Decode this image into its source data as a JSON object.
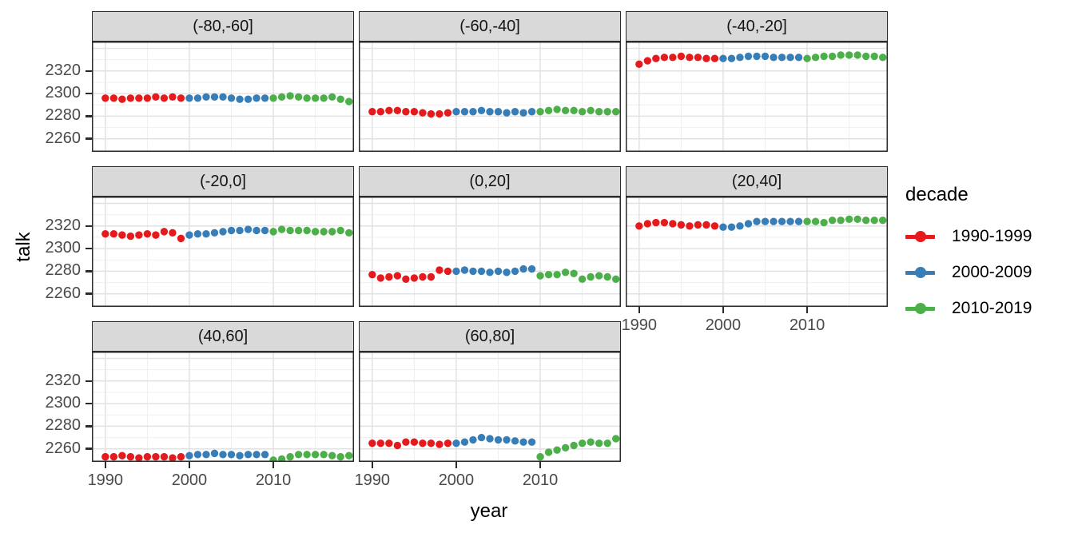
{
  "figure": {
    "ylabel": "talk",
    "xlabel": "year"
  },
  "legend": {
    "title": "decade",
    "entries": [
      {
        "label": "1990-1999",
        "color": "#E41A1C"
      },
      {
        "label": "2000-2009",
        "color": "#377EB8"
      },
      {
        "label": "2010-2019",
        "color": "#4DAF4A"
      }
    ]
  },
  "colors": {
    "red": "#E41A1C",
    "blue": "#377EB8",
    "green": "#4DAF4A",
    "strip_bg": "#D9D9D9",
    "panel_border": "#2b2b2b",
    "grid_major": "#E2E2E2",
    "grid_minor": "#EFEFEF",
    "axis_text": "#4a4a4a"
  },
  "chart_data": {
    "type": "scatter",
    "title": "",
    "xlabel": "year",
    "ylabel": "talk",
    "legend_title": "decade",
    "legend_position": "right",
    "grid": true,
    "x_ticks": [
      1990,
      2000,
      2010
    ],
    "y_ticks": [
      2320,
      2300,
      2280,
      2260
    ],
    "y_major": [
      2260,
      2280,
      2300,
      2320,
      2340
    ],
    "y_minor": [
      2250,
      2270,
      2290,
      2310,
      2330
    ],
    "x_minor": [
      1995,
      2005,
      2015
    ],
    "xlim": [
      1988.4,
      2019.6
    ],
    "ylim": [
      2248.5,
      2346
    ],
    "x_by_series": {
      "1990-1999": [
        1990,
        1991,
        1992,
        1993,
        1994,
        1995,
        1996,
        1997,
        1998,
        1999
      ],
      "2000-2009": [
        2000,
        2001,
        2002,
        2003,
        2004,
        2005,
        2006,
        2007,
        2008,
        2009
      ],
      "2010-2019": [
        2010,
        2011,
        2012,
        2013,
        2014,
        2015,
        2016,
        2017,
        2018,
        2019
      ]
    },
    "facets": [
      {
        "label": "(-80,-60]",
        "series": [
          {
            "name": "1990-1999",
            "color": "#E41A1C",
            "values": [
              2296,
              2296,
              2295,
              2296,
              2296,
              2296,
              2297,
              2296,
              2297,
              2296
            ]
          },
          {
            "name": "2000-2009",
            "color": "#377EB8",
            "values": [
              2296,
              2296,
              2297,
              2297,
              2297,
              2296,
              2295,
              2295,
              2296,
              2296
            ]
          },
          {
            "name": "2010-2019",
            "color": "#4DAF4A",
            "values": [
              2296,
              2297,
              2298,
              2297,
              2296,
              2296,
              2296,
              2297,
              2295,
              2293
            ]
          }
        ]
      },
      {
        "label": "(-60,-40]",
        "series": [
          {
            "name": "1990-1999",
            "color": "#E41A1C",
            "values": [
              2284,
              2284,
              2285,
              2285,
              2284,
              2284,
              2283,
              2282,
              2282,
              2283
            ]
          },
          {
            "name": "2000-2009",
            "color": "#377EB8",
            "values": [
              2284,
              2284,
              2284,
              2285,
              2284,
              2284,
              2283,
              2284,
              2283,
              2284
            ]
          },
          {
            "name": "2010-2019",
            "color": "#4DAF4A",
            "values": [
              2284,
              2285,
              2286,
              2285,
              2285,
              2284,
              2285,
              2284,
              2284,
              2284
            ]
          }
        ]
      },
      {
        "label": "(-40,-20]",
        "series": [
          {
            "name": "1990-1999",
            "color": "#E41A1C",
            "values": [
              2326,
              2329,
              2331,
              2332,
              2332,
              2333,
              2332,
              2332,
              2331,
              2331
            ]
          },
          {
            "name": "2000-2009",
            "color": "#377EB8",
            "values": [
              2331,
              2331,
              2332,
              2333,
              2333,
              2333,
              2332,
              2332,
              2332,
              2332
            ]
          },
          {
            "name": "2010-2019",
            "color": "#4DAF4A",
            "values": [
              2331,
              2332,
              2333,
              2333,
              2334,
              2334,
              2334,
              2333,
              2333,
              2332
            ]
          }
        ]
      },
      {
        "label": "(-20,0]",
        "series": [
          {
            "name": "1990-1999",
            "color": "#E41A1C",
            "values": [
              2313,
              2313,
              2312,
              2311,
              2312,
              2313,
              2312,
              2315,
              2314,
              2309
            ]
          },
          {
            "name": "2000-2009",
            "color": "#377EB8",
            "values": [
              2312,
              2313,
              2313,
              2314,
              2315,
              2316,
              2316,
              2317,
              2316,
              2316
            ]
          },
          {
            "name": "2010-2019",
            "color": "#4DAF4A",
            "values": [
              2315,
              2317,
              2316,
              2316,
              2316,
              2315,
              2315,
              2315,
              2316,
              2314
            ]
          }
        ]
      },
      {
        "label": "(0,20]",
        "series": [
          {
            "name": "1990-1999",
            "color": "#E41A1C",
            "values": [
              2277,
              2274,
              2275,
              2276,
              2273,
              2274,
              2275,
              2275,
              2281,
              2280
            ]
          },
          {
            "name": "2000-2009",
            "color": "#377EB8",
            "values": [
              2280,
              2281,
              2280,
              2280,
              2279,
              2280,
              2279,
              2280,
              2282,
              2282
            ]
          },
          {
            "name": "2010-2019",
            "color": "#4DAF4A",
            "values": [
              2276,
              2277,
              2277,
              2279,
              2278,
              2273,
              2275,
              2276,
              2275,
              2273
            ]
          }
        ]
      },
      {
        "label": "(20,40]",
        "series": [
          {
            "name": "1990-1999",
            "color": "#E41A1C",
            "values": [
              2320,
              2322,
              2323,
              2323,
              2322,
              2321,
              2320,
              2321,
              2321,
              2320
            ]
          },
          {
            "name": "2000-2009",
            "color": "#377EB8",
            "values": [
              2319,
              2319,
              2320,
              2322,
              2324,
              2324,
              2324,
              2324,
              2324,
              2324
            ]
          },
          {
            "name": "2010-2019",
            "color": "#4DAF4A",
            "values": [
              2324,
              2324,
              2323,
              2325,
              2325,
              2326,
              2326,
              2325,
              2325,
              2325
            ]
          }
        ]
      },
      {
        "label": "(40,60]",
        "series": [
          {
            "name": "1990-1999",
            "color": "#E41A1C",
            "values": [
              2253,
              2253,
              2254,
              2253,
              2252,
              2253,
              2253,
              2253,
              2252,
              2253
            ]
          },
          {
            "name": "2000-2009",
            "color": "#377EB8",
            "values": [
              2254,
              2255,
              2255,
              2256,
              2255,
              2255,
              2254,
              2255,
              2255,
              2255
            ]
          },
          {
            "name": "2010-2019",
            "color": "#4DAF4A",
            "values": [
              2250,
              2251,
              2253,
              2255,
              2255,
              2255,
              2255,
              2254,
              2253,
              2254
            ]
          }
        ]
      },
      {
        "label": "(60,80]",
        "series": [
          {
            "name": "1990-1999",
            "color": "#E41A1C",
            "values": [
              2265,
              2265,
              2265,
              2263,
              2266,
              2266,
              2265,
              2265,
              2264,
              2265
            ]
          },
          {
            "name": "2000-2009",
            "color": "#377EB8",
            "values": [
              2265,
              2266,
              2268,
              2270,
              2269,
              2268,
              2268,
              2267,
              2266,
              2266
            ]
          },
          {
            "name": "2010-2019",
            "color": "#4DAF4A",
            "values": [
              2253,
              2257,
              2259,
              2261,
              2263,
              2265,
              2266,
              2265,
              2265,
              2269
            ]
          }
        ]
      }
    ]
  }
}
